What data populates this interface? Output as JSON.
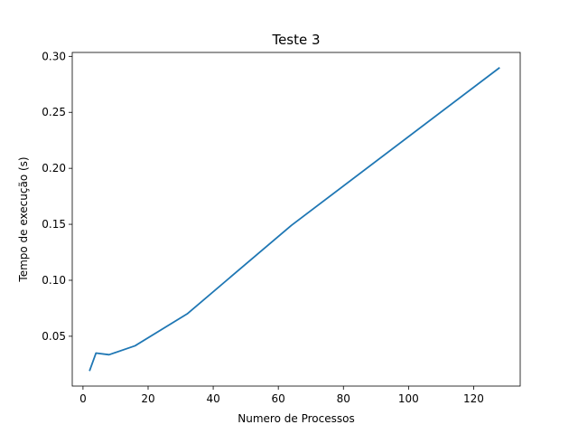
{
  "chart_data": {
    "type": "line",
    "title": "Teste 3",
    "xlabel": "Numero de Processos",
    "ylabel": "Tempo de execução (s)",
    "xlim": [
      -3.3,
      134.3
    ],
    "ylim": [
      0.0055,
      0.3035
    ],
    "xticks": [
      0,
      20,
      40,
      60,
      80,
      100,
      120
    ],
    "yticks": [
      0.05,
      0.1,
      0.15,
      0.2,
      0.25,
      0.3
    ],
    "xtick_labels": [
      "0",
      "20",
      "40",
      "60",
      "80",
      "100",
      "120"
    ],
    "ytick_labels": [
      "0.05",
      "0.10",
      "0.15",
      "0.20",
      "0.25",
      "0.30"
    ],
    "grid": false,
    "series": [
      {
        "color": "#1f77b4",
        "x": [
          2,
          4,
          8,
          16,
          32,
          64,
          128
        ],
        "y": [
          0.019,
          0.035,
          0.0335,
          0.0415,
          0.07,
          0.149,
          0.29
        ]
      }
    ]
  }
}
